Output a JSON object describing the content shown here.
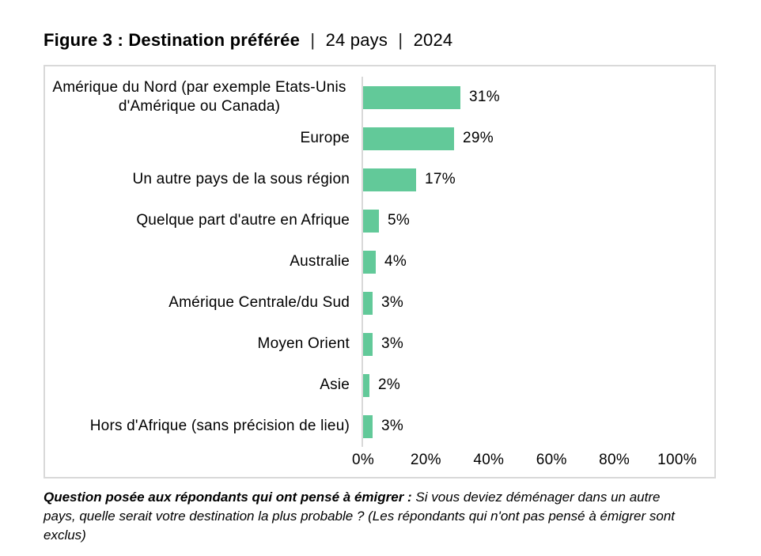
{
  "title": {
    "figure_label": "Figure 3 : Destination préférée",
    "separator": "|",
    "sample": "24 pays",
    "year": "2024"
  },
  "chart_data": {
    "type": "bar",
    "orientation": "horizontal",
    "title": "Figure 3 : Destination préférée | 24 pays | 2024",
    "categories": [
      "Amérique du Nord (par exemple Etats-Unis d'Amérique ou Canada)",
      "Europe",
      "Un autre pays de la sous région",
      "Quelque part d'autre en Afrique",
      "Australie",
      "Amérique Centrale/du Sud",
      "Moyen Orient",
      "Asie",
      "Hors d'Afrique (sans précision de lieu)"
    ],
    "values": [
      31,
      29,
      17,
      5,
      4,
      3,
      3,
      2,
      3
    ],
    "value_labels": [
      "31%",
      "29%",
      "17%",
      "5%",
      "4%",
      "3%",
      "3%",
      "2%",
      "3%"
    ],
    "x_tick_values": [
      0,
      20,
      40,
      60,
      80,
      100
    ],
    "x_tick_labels": [
      "0%",
      "20%",
      "40%",
      "60%",
      "80%",
      "100%"
    ],
    "xlim": [
      0,
      100
    ],
    "grid": false,
    "legend": false,
    "bar_color": "#62c999",
    "frame_color": "#d9d9d9"
  },
  "footnote": {
    "bold_lead": "Question posée aux répondants qui ont pensé à émigrer :",
    "body": " Si vous deviez déménager dans un autre pays, quelle serait votre destination la plus probable ? (Les répondants qui n'ont pas pensé à émigrer sont exclus)"
  }
}
